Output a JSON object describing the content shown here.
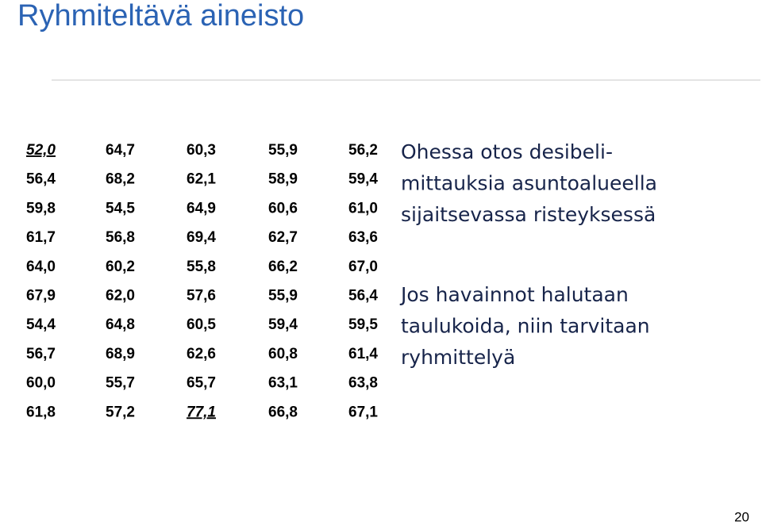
{
  "header": {
    "title": "Ryhmiteltävä aineisto"
  },
  "table": {
    "rows": [
      [
        "52,0",
        "64,7",
        "60,3",
        "55,9",
        "56,2"
      ],
      [
        "56,4",
        "68,2",
        "62,1",
        "58,9",
        "59,4"
      ],
      [
        "59,8",
        "54,5",
        "64,9",
        "60,6",
        "61,0"
      ],
      [
        "61,7",
        "56,8",
        "69,4",
        "62,7",
        "63,6"
      ],
      [
        "64,0",
        "60,2",
        "55,8",
        "66,2",
        "67,0"
      ],
      [
        "67,9",
        "62,0",
        "57,6",
        "55,9",
        "56,4"
      ],
      [
        "54,4",
        "64,8",
        "60,5",
        "59,4",
        "59,5"
      ],
      [
        "56,7",
        "68,9",
        "62,6",
        "60,8",
        "61,4"
      ],
      [
        "60,0",
        "55,7",
        "65,7",
        "63,1",
        "63,8"
      ],
      [
        "61,8",
        "57,2",
        "77,1",
        "66,8",
        "67,1"
      ]
    ]
  },
  "paragraphs": [
    [
      "Ohessa otos desibeli-",
      "mittauksia asuntoalueella",
      "sijaitsevassa risteyksessä"
    ],
    [
      "Jos havainnot halutaan",
      "taulukoida, niin tarvitaan",
      "ryhmittelyä"
    ]
  ],
  "footer": {
    "page": "20"
  }
}
